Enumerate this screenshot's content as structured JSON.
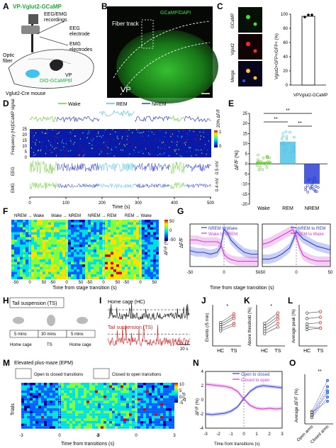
{
  "panels": {
    "A": {
      "letter": "A",
      "title": "VP-Vglut2-GCaMP",
      "labels": {
        "eeg_emg": "EEG/EMG",
        "recordings": "recordings",
        "eeg": "EEG",
        "electrode": "electrode",
        "emg": "EMG",
        "electrodes": "electrodes",
        "optic1": "Optic",
        "optic2": "fiber",
        "vp": "VP",
        "virus": "DIO-GCaMP6f",
        "mouse": "Vglut2-Cre mouse"
      }
    },
    "B": {
      "letter": "B",
      "legend": "GCaMP/DAPI",
      "fiber": "Fiber track",
      "region": "VP"
    },
    "C": {
      "letter": "C",
      "rows": [
        "GCaMP",
        "Vglut2",
        "Merge"
      ],
      "ylabel": "Vglut2+GFP+/GFP+ (%)",
      "xlabel": "VPVglut2-GCaMP",
      "chart_data": {
        "type": "bar",
        "categories": [
          "VPVglut2-GCaMP"
        ],
        "values": [
          97
        ],
        "points": [
          96,
          99,
          99
        ],
        "ylim": [
          0,
          100
        ],
        "yticks": [
          "0",
          "20",
          "40",
          "60",
          "80",
          "100"
        ]
      }
    },
    "D": {
      "letter": "D",
      "states": [
        "Wake",
        "REM",
        "NREM"
      ],
      "row_gcamp": "GCaMP signal",
      "row_freq": "Frequency (Hz)",
      "row_eeg": "EEG",
      "row_emg": "EMG",
      "scale_f": "20% ΔF/F",
      "scale_eeg": "0.5 mV",
      "scale_emg": "0.4 mV",
      "freq_ticks": [
        "0",
        "5",
        "10",
        "15",
        "20",
        "25"
      ],
      "cbar": [
        "1",
        "0"
      ],
      "x_ticks": [
        "0",
        "100",
        "200",
        "300",
        "400",
        "500"
      ],
      "xlabel": "Time (s)"
    },
    "E": {
      "letter": "E",
      "ylabel": "ΔF/F (%)",
      "sig": [
        "**",
        "**",
        "**"
      ],
      "chart_data": {
        "type": "bar",
        "categories": [
          "Wake",
          "REM",
          "NREM"
        ],
        "values": [
          1,
          11,
          -10
        ],
        "ylim": [
          -20,
          25
        ],
        "yticks": [
          "-20",
          "-15",
          "-10",
          "-5",
          "0",
          "5",
          "10",
          "15",
          "20",
          "25"
        ],
        "colors": [
          "#6fd13a",
          "#4fc3e8",
          "#2b3fd6"
        ]
      }
    },
    "F": {
      "letter": "F",
      "headers": [
        "NREM → Wake",
        "Wake → NREM",
        "NREM → REM",
        "REM → Wake"
      ],
      "cbar_label": "ΔF/F (%)",
      "cbar_ticks": [
        "50",
        "0",
        "-50"
      ],
      "x_ticks": [
        "-50",
        "0",
        "50"
      ],
      "xlabel": "Time from stage transition (s)"
    },
    "G": {
      "letter": "G",
      "ylabel": "ΔF/F",
      "legend_left": [
        "NREM to Wake",
        "Wake to NREM"
      ],
      "legend_right": [
        "NREM to REM",
        "REM to Wake"
      ],
      "x_ticks": [
        "-50",
        "0",
        "50"
      ],
      "xlabel": "Time from stage transition (s)",
      "chart_data": [
        {
          "type": "line",
          "x": [
            -50,
            -40,
            -30,
            -20,
            -10,
            -5,
            0,
            5,
            10,
            20,
            30,
            40,
            50
          ],
          "series": [
            {
              "name": "NREM to Wake",
              "values": [
                1.6,
                1.5,
                1.5,
                1.4,
                1.5,
                1.8,
                2.8,
                2.6,
                2.2,
                1.8,
                1.5,
                1.4,
                1.4
              ]
            },
            {
              "name": "Wake to NREM",
              "values": [
                2.2,
                2.2,
                2.1,
                2.1,
                2.1,
                2.0,
                1.4,
                1.2,
                1.1,
                1.0,
                1.0,
                1.0,
                1.0
              ]
            }
          ]
        },
        {
          "type": "line",
          "x": [
            -50,
            -40,
            -30,
            -20,
            -10,
            -5,
            0,
            5,
            10,
            20,
            30,
            40,
            50
          ],
          "series": [
            {
              "name": "NREM to REM",
              "values": [
                1.4,
                1.4,
                1.5,
                1.7,
                2.0,
                2.4,
                2.9,
                2.7,
                2.5,
                2.3,
                2.1,
                2.0,
                1.9
              ]
            },
            {
              "name": "REM to Wake",
              "values": [
                2.2,
                2.3,
                2.5,
                2.7,
                2.9,
                3.0,
                2.6,
                2.0,
                1.6,
                1.4,
                1.3,
                1.3,
                1.3
              ]
            }
          ]
        }
      ]
    },
    "H": {
      "letter": "H",
      "title": "Tail suspension (TS)",
      "durations": [
        "5 mins",
        "30 mins",
        "5 mins"
      ],
      "conditions": [
        "Home cage",
        "TS",
        "Home cage"
      ]
    },
    "I": {
      "letter": "I",
      "hc": "Home cage (HC)",
      "ts": "Tail suspension (TS)",
      "scale": "20 s"
    },
    "J": {
      "letter": "J",
      "ylabel": "Events (/5 min)",
      "sig": "*",
      "x": [
        "HC",
        "TS"
      ],
      "chart_data": {
        "type": "scatter",
        "x": [
          "HC",
          "TS"
        ],
        "series": [
          {
            "values": [
              34,
              47
            ]
          },
          {
            "values": [
              31,
              43
            ]
          },
          {
            "values": [
              28,
              40
            ]
          },
          {
            "values": [
              25,
              33
            ]
          },
          {
            "values": [
              22,
              30
            ]
          }
        ],
        "ylim": [
          0,
          60
        ]
      }
    },
    "K": {
      "letter": "K",
      "ylabel": "Above threshold (%)",
      "sig": "*",
      "x": [
        "HC",
        "TS"
      ],
      "chart_data": {
        "type": "scatter",
        "x": [
          "HC",
          "TS"
        ],
        "series": [
          {
            "values": [
              5.5,
              8.0
            ]
          },
          {
            "values": [
              4.8,
              7.2
            ]
          },
          {
            "values": [
              4.2,
              6.5
            ]
          },
          {
            "values": [
              3.6,
              5.5
            ]
          },
          {
            "values": [
              3.0,
              4.6
            ]
          }
        ],
        "ylim": [
          0,
          10
        ]
      }
    },
    "L": {
      "letter": "L",
      "ylabel": "Average peak (%)",
      "x": [
        "HC",
        "TS"
      ],
      "chart_data": {
        "type": "scatter",
        "x": [
          "HC",
          "TS"
        ],
        "series": [
          {
            "values": [
              12,
              12.5
            ]
          },
          {
            "values": [
              10,
              10.5
            ]
          },
          {
            "values": [
              8,
              8.5
            ]
          },
          {
            "values": [
              7,
              6.5
            ]
          },
          {
            "values": [
              6,
              6.5
            ]
          }
        ],
        "ylim": [
          0,
          15
        ]
      }
    },
    "M": {
      "letter": "M",
      "title": "Elevated plus-maze (EPM)",
      "cond_left": "Open to closed transitions",
      "cond_right": "Closed to open transitions",
      "ylabel": "Trials",
      "cbar_label": "ΔF/F",
      "cbar_ticks": [
        "10",
        "5",
        "0",
        "-5"
      ],
      "x_ticks": [
        "-3",
        "0",
        "3"
      ],
      "xlabel": "Time from transitions (s)"
    },
    "N": {
      "letter": "N",
      "ylabel": "ΔF/F (%)",
      "legend": [
        "Open to closed",
        "Closed to open"
      ],
      "x_ticks": [
        "-3",
        "-2",
        "-1",
        "0",
        "1",
        "2",
        "3"
      ],
      "xlabel": "Time from transitions (s)",
      "chart_data": {
        "type": "line",
        "x": [
          -3,
          -2.5,
          -2,
          -1.5,
          -1,
          -0.5,
          0,
          0.5,
          1,
          1.5,
          2,
          2.5,
          3
        ],
        "series": [
          {
            "name": "Open to closed",
            "values": [
              -2.0,
              -2.1,
              -2.0,
              -1.9,
              -1.6,
              -1.0,
              0.2,
              1.2,
              1.8,
              2.0,
              1.9,
              1.8,
              1.7
            ]
          },
          {
            "name": "Closed to open",
            "values": [
              2.2,
              2.1,
              2.0,
              1.9,
              1.7,
              1.2,
              0.1,
              -0.8,
              -1.2,
              -1.3,
              -1.2,
              -1.3,
              -1.2
            ]
          }
        ],
        "ylim": [
          -4,
          4
        ]
      }
    },
    "O": {
      "letter": "O",
      "ylabel": "Average ΔF/F (%)",
      "sig": "**",
      "x": [
        "Open arms",
        "Closed arms"
      ],
      "chart_data": {
        "type": "scatter",
        "x": [
          "Open arms",
          "Closed arms"
        ],
        "series": [
          {
            "values": [
              1.0,
              8.5
            ]
          },
          {
            "values": [
              0.5,
              7.0
            ]
          },
          {
            "values": [
              0.2,
              6.0
            ]
          },
          {
            "values": [
              -0.2,
              5.5
            ]
          },
          {
            "values": [
              -0.5,
              4.5
            ]
          },
          {
            "values": [
              0.8,
              3.5
            ]
          }
        ],
        "ylim": [
          -2,
          10
        ]
      }
    }
  }
}
